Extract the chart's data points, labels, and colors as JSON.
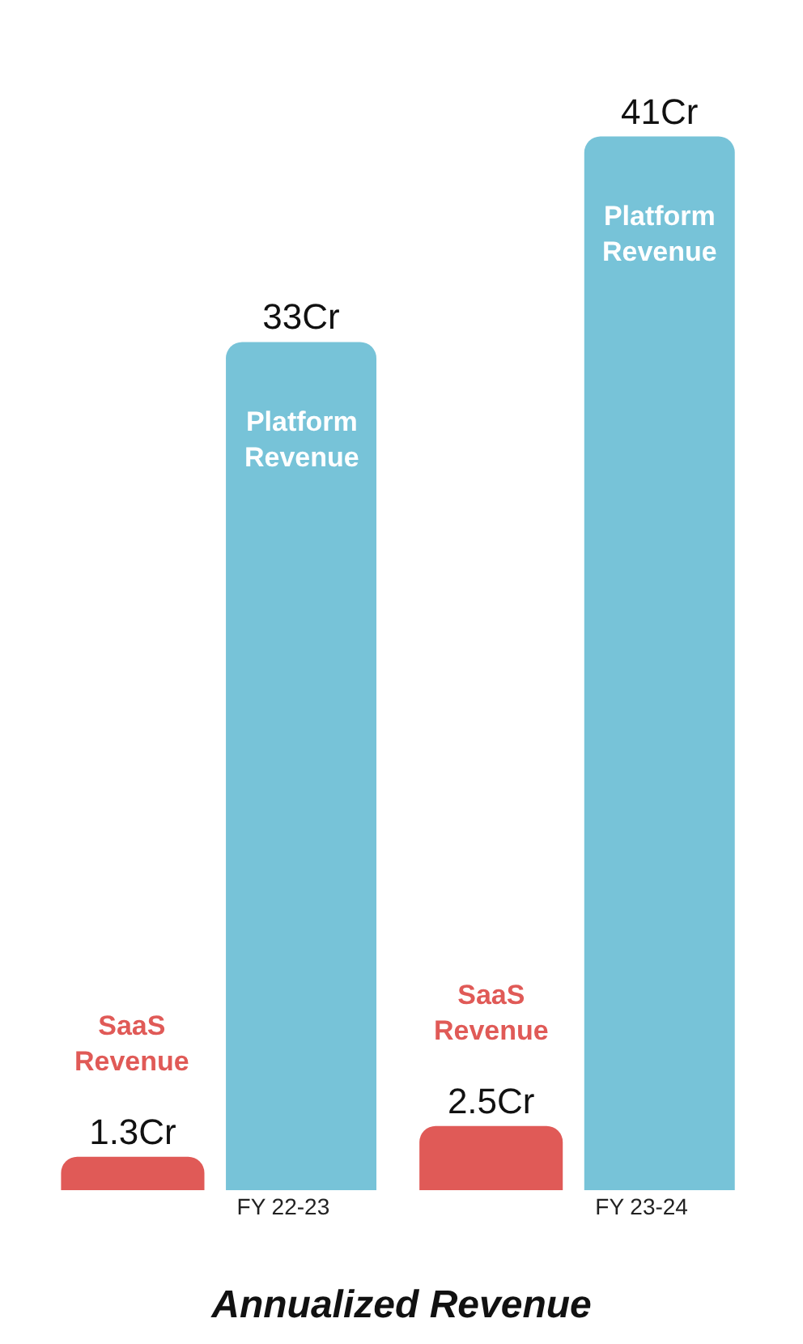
{
  "chart_data": {
    "type": "bar",
    "title": "Annualized Revenue",
    "categories": [
      "FY 22-23",
      "FY 23-24"
    ],
    "series": [
      {
        "name": "Platform Revenue",
        "color": "#77c3d8",
        "values": [
          33,
          41
        ],
        "value_labels": [
          "33Cr",
          "41Cr"
        ]
      },
      {
        "name": "SaaS Revenue",
        "color": "#e05a57",
        "values": [
          1.3,
          2.5
        ],
        "value_labels": [
          "1.3Cr",
          "2.5Cr"
        ]
      }
    ]
  }
}
